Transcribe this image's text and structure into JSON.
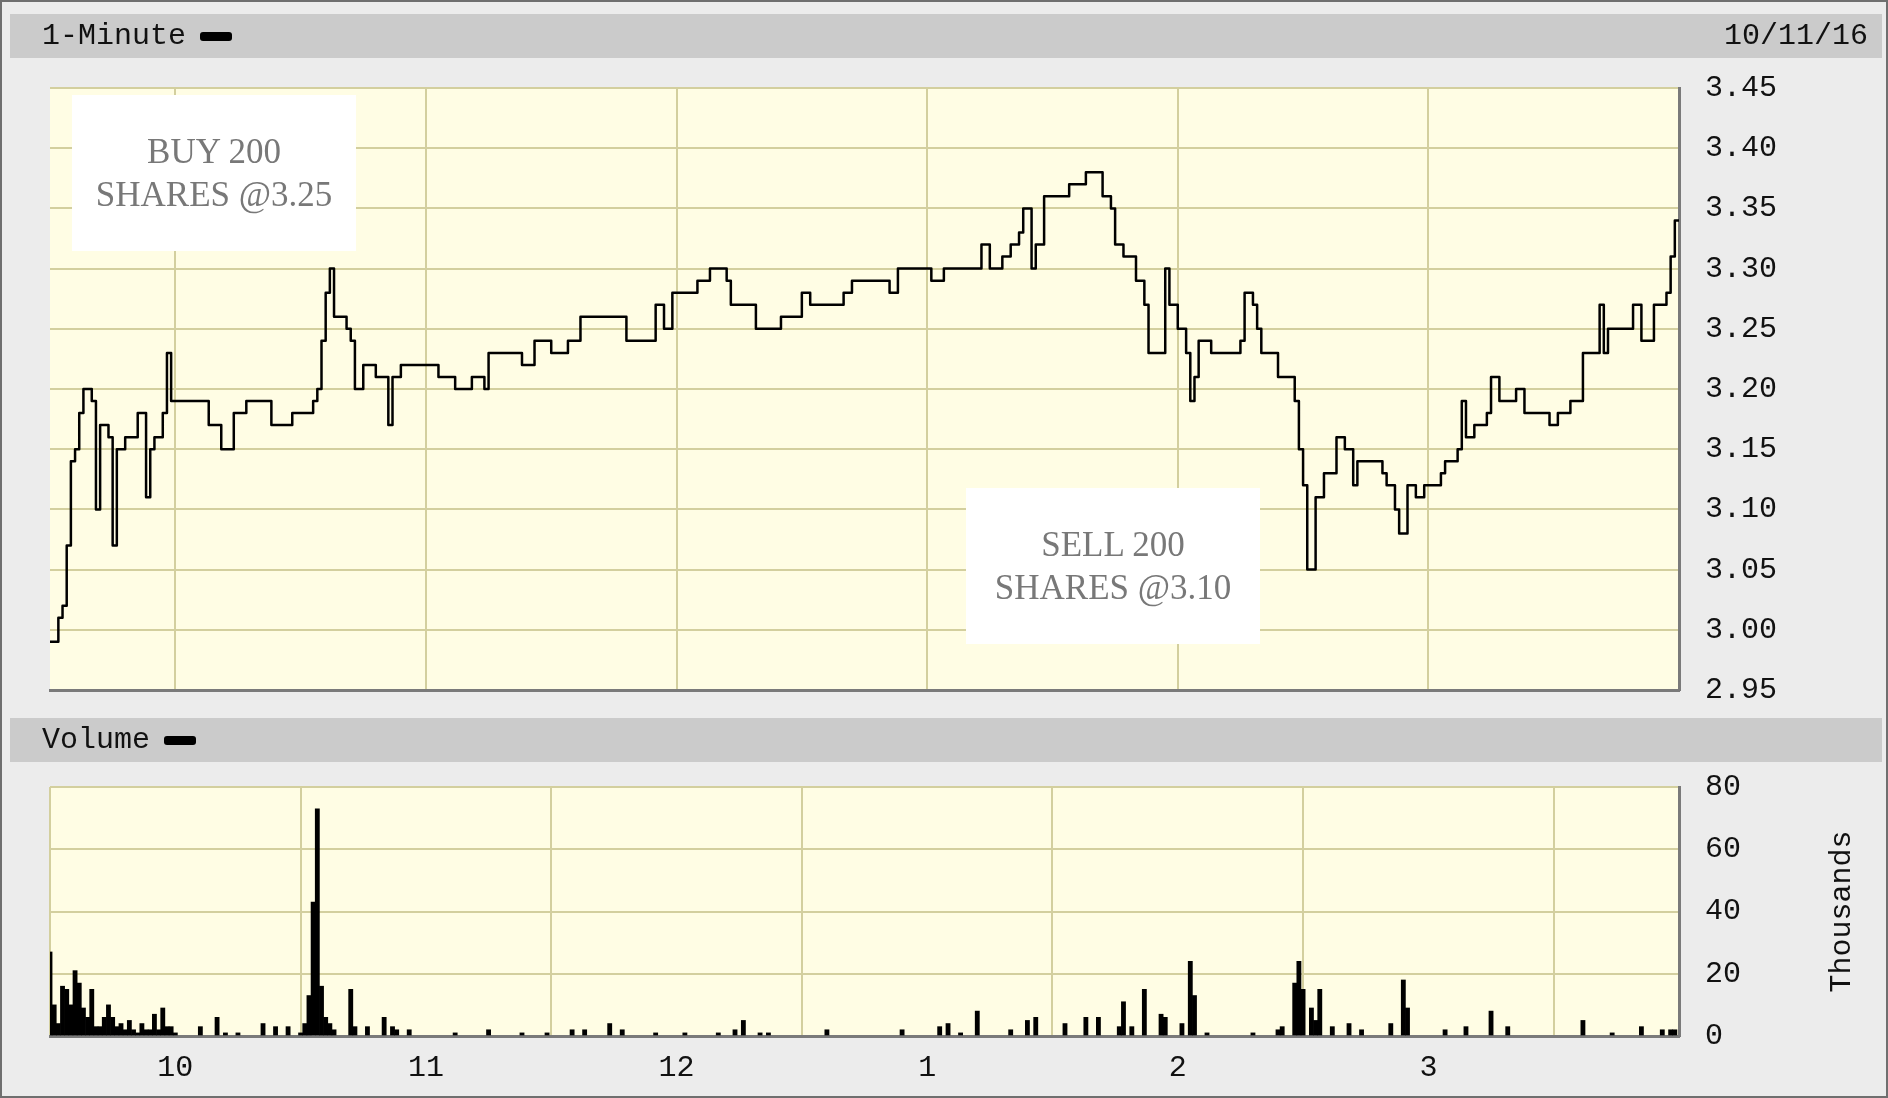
{
  "chart_data": [
    {
      "type": "step",
      "tick_labels": "y",
      "legend": "top left",
      "grid": true,
      "xlim": [
        "--10-11T09:30",
        "--10-11T16:00"
      ],
      "xticks": [
        {
          "value": "--10-11T10:00",
          "label": null
        },
        {
          "value": "--10-11T11:00",
          "label": null
        },
        {
          "value": "--10-11T12:00",
          "label": null
        },
        {
          "value": "--10-11T13:00",
          "label": null
        },
        {
          "value": "--10-11T14:00",
          "label": null
        },
        {
          "value": "--10-11T15:00",
          "label": null
        }
      ],
      "ylim": [
        2.95,
        3.45
      ],
      "yticks": [
        2.95,
        {
          "value": 3,
          "label": "3.00"
        },
        3.05,
        {
          "value": 3.1,
          "label": "3.10"
        },
        3.15,
        {
          "value": 3.2,
          "label": "3.20"
        },
        3.25,
        {
          "value": 3.3,
          "label": "3.30"
        },
        3.35,
        {
          "value": 3.4,
          "label": "3.40"
        },
        3.45
      ],
      "annotations": [
        "10/11/16",
        "BUY 200 SHARES @3.25",
        "SELL 200 SHARES @3.10"
      ],
      "series": [
        {
          "name": "1-Minute",
          "color": "#000000",
          "x": [
            "--10-11T09:30",
            "--10-11T09:32",
            "--10-11T09:33",
            "--10-11T09:34",
            "--10-11T09:35",
            "--10-11T09:36",
            "--10-11T09:37",
            "--10-11T09:38",
            "--10-11T09:40",
            "--10-11T09:41",
            "--10-11T09:42",
            "--10-11T09:44",
            "--10-11T09:45",
            "--10-11T09:46",
            "--10-11T09:48",
            "--10-11T09:51",
            "--10-11T09:53",
            "--10-11T09:54",
            "--10-11T09:55",
            "--10-11T09:57",
            "--10-11T09:58",
            "--10-11T09:59",
            "--10-11T10:08",
            "--10-11T10:11",
            "--10-11T10:14",
            "--10-11T10:17",
            "--10-11T10:23",
            "--10-11T10:28",
            "--10-11T10:33",
            "--10-11T10:34",
            "--10-11T10:35",
            "--10-11T10:36",
            "--10-11T10:37",
            "--10-11T10:38",
            "--10-11T10:41",
            "--10-11T10:42",
            "--10-11T10:43",
            "--10-11T10:45",
            "--10-11T10:48",
            "--10-11T10:51",
            "--10-11T10:52",
            "--10-11T10:54",
            "--10-11T11:03",
            "--10-11T11:07",
            "--10-11T11:11",
            "--10-11T11:14",
            "--10-11T11:15",
            "--10-11T11:23",
            "--10-11T11:26",
            "--10-11T11:30",
            "--10-11T11:34",
            "--10-11T11:37",
            "--10-11T11:48",
            "--10-11T11:55",
            "--10-11T11:57",
            "--10-11T11:59",
            "--10-11T12:05",
            "--10-11T12:08",
            "--10-11T12:12",
            "--10-11T12:13",
            "--10-11T12:19",
            "--10-11T12:25",
            "--10-11T12:30",
            "--10-11T12:32",
            "--10-11T12:40",
            "--10-11T12:42",
            "--10-11T12:51",
            "--10-11T12:53",
            "--10-11T13:01",
            "--10-11T13:04",
            "--10-11T13:13",
            "--10-11T13:15",
            "--10-11T13:18",
            "--10-11T13:20",
            "--10-11T13:22",
            "--10-11T13:23",
            "--10-11T13:25",
            "--10-11T13:26",
            "--10-11T13:28",
            "--10-11T13:34",
            "--10-11T13:38",
            "--10-11T13:42",
            "--10-11T13:44",
            "--10-11T13:45",
            "--10-11T13:47",
            "--10-11T13:50",
            "--10-11T13:52",
            "--10-11T13:53",
            "--10-11T13:57",
            "--10-11T13:58",
            "--10-11T14:00",
            "--10-11T14:02",
            "--10-11T14:03",
            "--10-11T14:04",
            "--10-11T14:05",
            "--10-11T14:08",
            "--10-11T14:15",
            "--10-11T14:16",
            "--10-11T14:18",
            "--10-11T14:19",
            "--10-11T14:20",
            "--10-11T14:24",
            "--10-11T14:28",
            "--10-11T14:29",
            "--10-11T14:30",
            "--10-11T14:31",
            "--10-11T14:33",
            "--10-11T14:35",
            "--10-11T14:38",
            "--10-11T14:40",
            "--10-11T14:42",
            "--10-11T14:43",
            "--10-11T14:49",
            "--10-11T14:50",
            "--10-11T14:52",
            "--10-11T14:53",
            "--10-11T14:55",
            "--10-11T14:57",
            "--10-11T14:59",
            "--10-11T15:03",
            "--10-11T15:04",
            "--10-11T15:07",
            "--10-11T15:08",
            "--10-11T15:09",
            "--10-11T15:11",
            "--10-11T15:14",
            "--10-11T15:15",
            "--10-11T15:17",
            "--10-11T15:21",
            "--10-11T15:23",
            "--10-11T15:29",
            "--10-11T15:31",
            "--10-11T15:34",
            "--10-11T15:37",
            "--10-11T15:41",
            "--10-11T15:42",
            "--10-11T15:43",
            "--10-11T15:49",
            "--10-11T15:51",
            "--10-11T15:54",
            "--10-11T15:57",
            "--10-11T15:58",
            "--10-11T15:59",
            "--10-11T16:00"
          ],
          "values": [
            2.99,
            3.01,
            3.02,
            3.07,
            3.14,
            3.15,
            3.18,
            3.2,
            3.19,
            3.1,
            3.17,
            3.16,
            3.07,
            3.15,
            3.16,
            3.18,
            3.11,
            3.15,
            3.16,
            3.18,
            3.23,
            3.19,
            3.17,
            3.15,
            3.18,
            3.19,
            3.17,
            3.18,
            3.19,
            3.2,
            3.24,
            3.28,
            3.3,
            3.26,
            3.25,
            3.24,
            3.2,
            3.22,
            3.21,
            3.17,
            3.21,
            3.22,
            3.21,
            3.2,
            3.21,
            3.2,
            3.23,
            3.22,
            3.24,
            3.23,
            3.24,
            3.26,
            3.24,
            3.27,
            3.25,
            3.28,
            3.29,
            3.3,
            3.29,
            3.27,
            3.25,
            3.26,
            3.28,
            3.27,
            3.28,
            3.29,
            3.28,
            3.3,
            3.29,
            3.3,
            3.32,
            3.3,
            3.31,
            3.32,
            3.33,
            3.35,
            3.3,
            3.32,
            3.36,
            3.37,
            3.38,
            3.36,
            3.35,
            3.32,
            3.31,
            3.29,
            3.27,
            3.23,
            3.3,
            3.27,
            3.25,
            3.23,
            3.19,
            3.21,
            3.24,
            3.23,
            3.24,
            3.28,
            3.27,
            3.25,
            3.23,
            3.21,
            3.19,
            3.15,
            3.12,
            3.05,
            3.11,
            3.13,
            3.16,
            3.15,
            3.12,
            3.14,
            3.13,
            3.12,
            3.1,
            3.08,
            3.12,
            3.11,
            3.12,
            3.13,
            3.14,
            3.15,
            3.19,
            3.16,
            3.17,
            3.18,
            3.21,
            3.19,
            3.2,
            3.18,
            3.17,
            3.18,
            3.19,
            3.23,
            3.27,
            3.23,
            3.25,
            3.27,
            3.24,
            3.27,
            3.28,
            3.31,
            3.34,
            3.34
          ]
        }
      ]
    },
    {
      "type": "bar",
      "legend": "top left",
      "grid": true,
      "ylabel": "Thousands",
      "xlim": [
        "--10-11T09:30",
        "--10-11T16:00"
      ],
      "xticks": [
        {
          "value": "--10-11T10:00",
          "label": "10"
        },
        {
          "value": "--10-11T11:00",
          "label": "11"
        },
        {
          "value": "--10-11T12:00",
          "label": "12"
        },
        {
          "value": "--10-11T13:00",
          "label": "1"
        },
        {
          "value": "--10-11T14:00",
          "label": "2"
        },
        {
          "value": "--10-11T15:00",
          "label": "3"
        }
      ],
      "ylim": [
        0,
        80
      ],
      "yticks": [
        0,
        20,
        40,
        60,
        80
      ],
      "series": [
        {
          "name": "Volume",
          "color": "#000000",
          "x": [
            "--10-11T09:30",
            "--10-11T09:31",
            "--10-11T09:32",
            "--10-11T09:33",
            "--10-11T09:34",
            "--10-11T09:35",
            "--10-11T09:36",
            "--10-11T09:37",
            "--10-11T09:38",
            "--10-11T09:39",
            "--10-11T09:40",
            "--10-11T09:41",
            "--10-11T09:42",
            "--10-11T09:43",
            "--10-11T09:44",
            "--10-11T09:45",
            "--10-11T09:46",
            "--10-11T09:47",
            "--10-11T09:48",
            "--10-11T09:49",
            "--10-11T09:50",
            "--10-11T09:51",
            "--10-11T09:52",
            "--10-11T09:53",
            "--10-11T09:54",
            "--10-11T09:55",
            "--10-11T09:56",
            "--10-11T09:57",
            "--10-11T09:58",
            "--10-11T09:59",
            "--10-11T10:00",
            "--10-11T10:06",
            "--10-11T10:10",
            "--10-11T10:12",
            "--10-11T10:15",
            "--10-11T10:21",
            "--10-11T10:24",
            "--10-11T10:27",
            "--10-11T10:30",
            "--10-11T10:31",
            "--10-11T10:32",
            "--10-11T10:33",
            "--10-11T10:34",
            "--10-11T10:35",
            "--10-11T10:36",
            "--10-11T10:37",
            "--10-11T10:38",
            "--10-11T10:42",
            "--10-11T10:43",
            "--10-11T10:46",
            "--10-11T10:50",
            "--10-11T10:52",
            "--10-11T10:53",
            "--10-11T10:56",
            "--10-11T11:07",
            "--10-11T11:15",
            "--10-11T11:23",
            "--10-11T11:29",
            "--10-11T11:35",
            "--10-11T11:38",
            "--10-11T11:44",
            "--10-11T11:47",
            "--10-11T11:55",
            "--10-11T12:02",
            "--10-11T12:10",
            "--10-11T12:14",
            "--10-11T12:16",
            "--10-11T12:20",
            "--10-11T12:22",
            "--10-11T12:36",
            "--10-11T12:54",
            "--10-11T13:03",
            "--10-11T13:05",
            "--10-11T13:08",
            "--10-11T13:12",
            "--10-11T13:20",
            "--10-11T13:24",
            "--10-11T13:26",
            "--10-11T13:33",
            "--10-11T13:38",
            "--10-11T13:41",
            "--10-11T13:46",
            "--10-11T13:47",
            "--10-11T13:49",
            "--10-11T13:52",
            "--10-11T13:56",
            "--10-11T13:57",
            "--10-11T14:01",
            "--10-11T14:03",
            "--10-11T14:04",
            "--10-11T14:07",
            "--10-11T14:18",
            "--10-11T14:24",
            "--10-11T14:25",
            "--10-11T14:28",
            "--10-11T14:29",
            "--10-11T14:30",
            "--10-11T14:32",
            "--10-11T14:33",
            "--10-11T14:34",
            "--10-11T14:37",
            "--10-11T14:41",
            "--10-11T14:44",
            "--10-11T14:51",
            "--10-11T14:54",
            "--10-11T14:55",
            "--10-11T15:04",
            "--10-11T15:09",
            "--10-11T15:15",
            "--10-11T15:19",
            "--10-11T15:37",
            "--10-11T15:44",
            "--10-11T15:51",
            "--10-11T15:56",
            "--10-11T15:58",
            "--10-11T15:59"
          ],
          "values": [
            27,
            10,
            4,
            16,
            15,
            10,
            21,
            17,
            9,
            6,
            15,
            3,
            3,
            6,
            10,
            6,
            3,
            4,
            2,
            5,
            2,
            1,
            4,
            2,
            2,
            7,
            2,
            9,
            3,
            3,
            1,
            3,
            6,
            1,
            1,
            4,
            3,
            3,
            1,
            4,
            13,
            43,
            73,
            16,
            6,
            4,
            2,
            15,
            3,
            3,
            6,
            3,
            2,
            2,
            1,
            2,
            1,
            1,
            2,
            2,
            4,
            2,
            1,
            1,
            1,
            2,
            5,
            1,
            1,
            2,
            2,
            3,
            4,
            1,
            8,
            2,
            5,
            6,
            4,
            6,
            6,
            3,
            11,
            3,
            15,
            7,
            6,
            4,
            24,
            13,
            1,
            1,
            2,
            3,
            17,
            24,
            15,
            9,
            5,
            15,
            3,
            4,
            2,
            4,
            18,
            9,
            2,
            3,
            8,
            3,
            5,
            1,
            3,
            2,
            2,
            2
          ]
        }
      ]
    }
  ]
}
